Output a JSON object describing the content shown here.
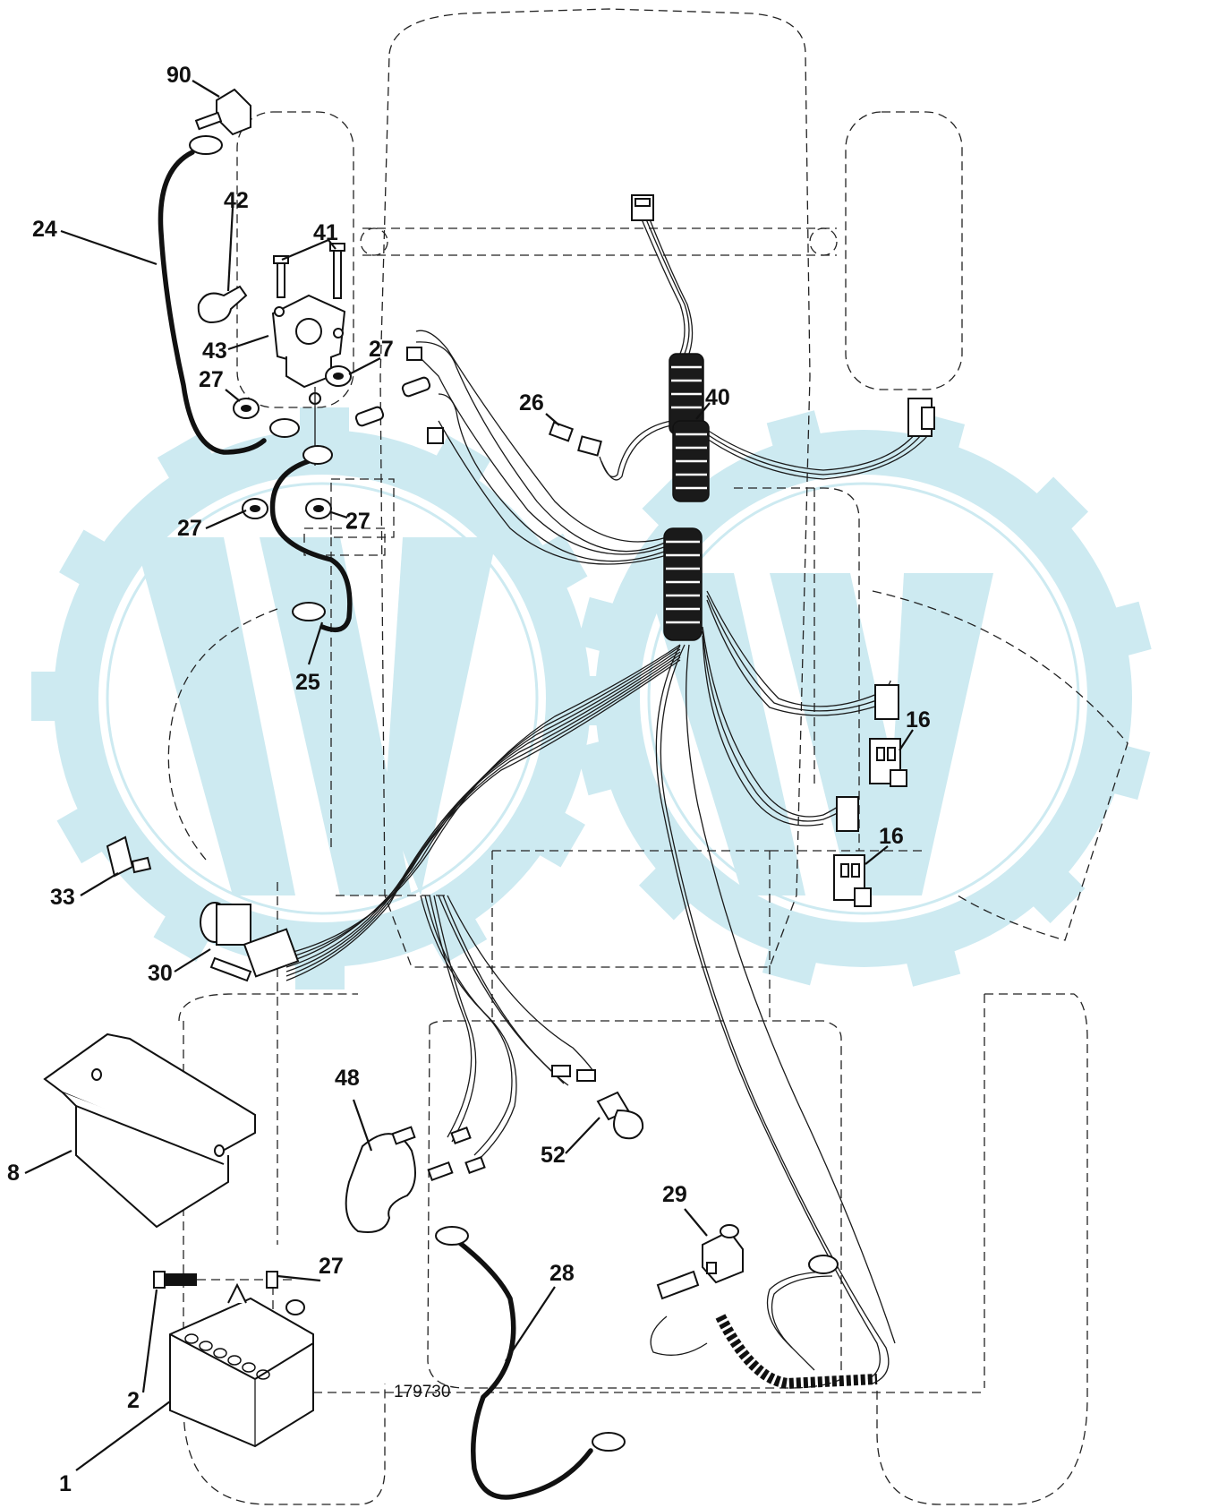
{
  "figure_number": "179730",
  "callouts": [
    {
      "id": "c-1",
      "text": "1"
    },
    {
      "id": "c-2",
      "text": "2"
    },
    {
      "id": "c-8",
      "text": "8"
    },
    {
      "id": "c-16a",
      "text": "16"
    },
    {
      "id": "c-16b",
      "text": "16"
    },
    {
      "id": "c-24",
      "text": "24"
    },
    {
      "id": "c-25",
      "text": "25"
    },
    {
      "id": "c-26",
      "text": "26"
    },
    {
      "id": "c-27a",
      "text": "27"
    },
    {
      "id": "c-27b",
      "text": "27"
    },
    {
      "id": "c-27c",
      "text": "27"
    },
    {
      "id": "c-27d",
      "text": "27"
    },
    {
      "id": "c-27e",
      "text": "27"
    },
    {
      "id": "c-28",
      "text": "28"
    },
    {
      "id": "c-29",
      "text": "29"
    },
    {
      "id": "c-30",
      "text": "30"
    },
    {
      "id": "c-33",
      "text": "33"
    },
    {
      "id": "c-40",
      "text": "40"
    },
    {
      "id": "c-41",
      "text": "41"
    },
    {
      "id": "c-42",
      "text": "42"
    },
    {
      "id": "c-43",
      "text": "43"
    },
    {
      "id": "c-48",
      "text": "48"
    },
    {
      "id": "c-52",
      "text": "52"
    },
    {
      "id": "c-90",
      "text": "90"
    }
  ]
}
